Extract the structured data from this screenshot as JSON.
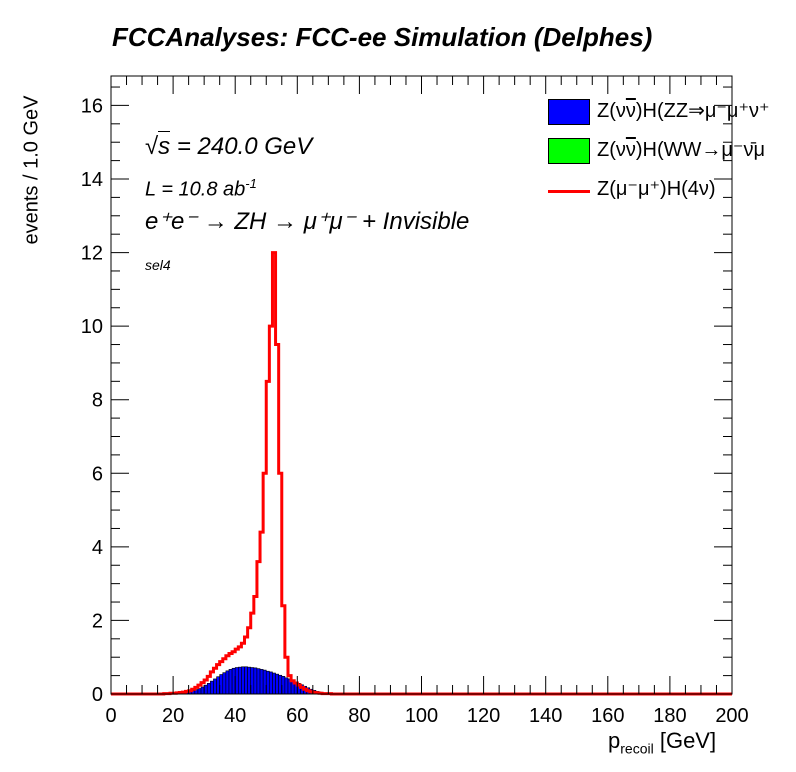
{
  "title": "FCCAnalyses: FCC-ee Simulation (Delphes)",
  "annotations": {
    "sqrt_s": "√s = 240.0 GeV",
    "sqrt_s_value": "= 240.0 GeV",
    "lumi": "L = 10.8 ab",
    "lumi_exp": "-1",
    "process": "e⁺e⁻ → ZH → μ⁺μ⁻ + Invisible",
    "selection": "sel4"
  },
  "chart_data": {
    "type": "histogram",
    "xlabel": "p_recoil [GeV]",
    "xlabel_main": "p",
    "xlabel_sub": "recoil",
    "xlabel_unit": "[GeV]",
    "ylabel": "events / 1.0 GeV",
    "xlim": [
      0,
      200
    ],
    "ylim": [
      0,
      16.8
    ],
    "bin_width": 1.0,
    "x_ticks": [
      "0",
      "20",
      "40",
      "60",
      "80",
      "100",
      "120",
      "140",
      "160",
      "180",
      "200"
    ],
    "y_ticks": [
      "0",
      "2",
      "4",
      "6",
      "8",
      "10",
      "12",
      "14",
      "16"
    ],
    "legend_position": "top-right",
    "series": [
      {
        "name": "Z(νν̄)H(ZZ⇒μ⁻μ⁺ν⁺",
        "style": "filled",
        "color": "#0000ff",
        "x_start": 17,
        "values": [
          0.01,
          0.01,
          0.01,
          0.02,
          0.02,
          0.03,
          0.04,
          0.05,
          0.07,
          0.09,
          0.12,
          0.15,
          0.19,
          0.24,
          0.29,
          0.35,
          0.41,
          0.47,
          0.53,
          0.58,
          0.63,
          0.67,
          0.7,
          0.72,
          0.73,
          0.74,
          0.74,
          0.73,
          0.72,
          0.71,
          0.69,
          0.67,
          0.65,
          0.62,
          0.6,
          0.57,
          0.54,
          0.51,
          0.48,
          0.44,
          0.41,
          0.37,
          0.33,
          0.29,
          0.25,
          0.21,
          0.17,
          0.13,
          0.1,
          0.07,
          0.05,
          0.03,
          0.02,
          0.01,
          0.01
        ]
      },
      {
        "name": "Z(νν̄)H(WW→μ⁻ν̄μ",
        "style": "filled",
        "color": "#00ff00",
        "x_start": 17,
        "values": []
      },
      {
        "name": "Z(μ⁻μ⁺)H(4ν)",
        "style": "line",
        "color": "#ff0000",
        "x_start": 17,
        "values": [
          0.01,
          0.01,
          0.02,
          0.02,
          0.03,
          0.04,
          0.05,
          0.07,
          0.09,
          0.13,
          0.18,
          0.24,
          0.31,
          0.38,
          0.48,
          0.6,
          0.7,
          0.8,
          0.88,
          0.96,
          1.04,
          1.1,
          1.15,
          1.22,
          1.28,
          1.38,
          1.55,
          1.8,
          2.2,
          2.65,
          3.6,
          4.4,
          6.0,
          8.5,
          10.0,
          12.0,
          9.5,
          6.0,
          2.4,
          1.0,
          0.5,
          0.36,
          0.3,
          0.24,
          0.18,
          0.13,
          0.09,
          0.06,
          0.04,
          0.03,
          0.02,
          0.01,
          0.01,
          0.01,
          0.0
        ]
      }
    ]
  },
  "legend": {
    "items": [
      {
        "label_pre": "Z(ν",
        "label_bar": "ν",
        "label_post": ")H(ZZ⇒μ⁻μ⁺ν⁺"
      },
      {
        "label_pre": "Z(ν",
        "label_bar": "ν",
        "label_post": ")H(WW→μ⁻ν̄μ"
      },
      {
        "label_pre": "Z(μ⁻μ⁺)H(4ν)",
        "label_bar": "",
        "label_post": ""
      }
    ]
  },
  "colors": {
    "zz": "#0000ff",
    "ww": "#00ff00",
    "signal": "#ff0000"
  }
}
